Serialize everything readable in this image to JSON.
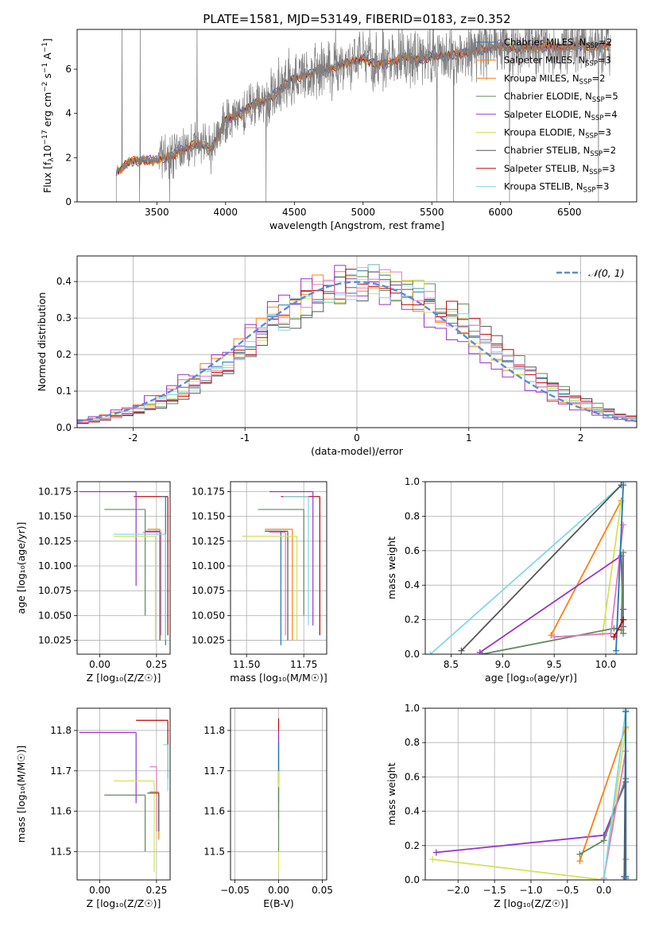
{
  "title": "PLATE=1581, MJD=53149, FIBERID=0183, z=0.352",
  "colors": {
    "Chabrier MILES": "#1f77b4",
    "Salpeter MILES": "#ff7f0e",
    "Kroupa MILES": "#ff7f0e",
    "Chabrier ELODIE": "#5f8a5f",
    "Salpeter ELODIE": "#9932cc",
    "Kroupa ELODIE": "#d4e157",
    "Chabrier STELIB": "#555555",
    "Salpeter STELIB": "#c00000",
    "Kroupa STELIB": "#80d8e0",
    "Pink": "#e377c2",
    "Data": "#808080",
    "Normal": "#5b8bd9"
  },
  "chart_data": [
    {
      "id": "spectrum",
      "type": "line",
      "xlabel": "wavelength [Angstrom, rest frame]",
      "ylabel_parts": [
        "Flux [f",
        "λ",
        "10",
        "−17",
        " erg cm",
        "−2",
        " s",
        "−1",
        " A",
        "−1",
        "]"
      ],
      "xlim": [
        2920,
        6990
      ],
      "ylim": [
        0,
        7.8
      ],
      "xticks": [
        3500,
        4000,
        4500,
        5000,
        5500,
        6000,
        6500
      ],
      "yticks": [
        0,
        2,
        4,
        6
      ],
      "continuum": [
        [
          3200,
          1.3
        ],
        [
          3300,
          1.8
        ],
        [
          3400,
          1.9
        ],
        [
          3500,
          1.85
        ],
        [
          3600,
          2.1
        ],
        [
          3700,
          2.4
        ],
        [
          3800,
          2.6
        ],
        [
          3900,
          2.4
        ],
        [
          4000,
          3.7
        ],
        [
          4100,
          4.0
        ],
        [
          4200,
          4.4
        ],
        [
          4300,
          4.6
        ],
        [
          4400,
          5.1
        ],
        [
          4500,
          5.6
        ],
        [
          4600,
          5.8
        ],
        [
          4700,
          6.0
        ],
        [
          4800,
          6.1
        ],
        [
          4900,
          6.3
        ],
        [
          5000,
          6.5
        ],
        [
          5100,
          6.2
        ],
        [
          5200,
          6.3
        ],
        [
          5300,
          6.6
        ],
        [
          5400,
          6.4
        ],
        [
          5500,
          6.6
        ],
        [
          5600,
          6.6
        ],
        [
          5700,
          6.7
        ],
        [
          5800,
          6.8
        ],
        [
          5900,
          6.9
        ],
        [
          6000,
          7.1
        ],
        [
          6100,
          6.9
        ],
        [
          6200,
          7.0
        ],
        [
          6300,
          7.0
        ],
        [
          6400,
          7.0
        ],
        [
          6500,
          7.0
        ],
        [
          6600,
          7.1
        ],
        [
          6700,
          7.0
        ],
        [
          6800,
          7.1
        ]
      ],
      "legend": [
        {
          "label": "Chabrier MILES, N",
          "sub": "SSP",
          "val": "=2",
          "color": "Chabrier MILES"
        },
        {
          "label": "Salpeter MILES, N",
          "sub": "SSP",
          "val": "=3",
          "color": "Salpeter MILES"
        },
        {
          "label": "Kroupa MILES, N",
          "sub": "SSP",
          "val": "=2",
          "color": "Kroupa MILES"
        },
        {
          "label": "Chabrier ELODIE, N",
          "sub": "SSP",
          "val": "=5",
          "color": "Chabrier ELODIE"
        },
        {
          "label": "Salpeter ELODIE, N",
          "sub": "SSP",
          "val": "=4",
          "color": "Salpeter ELODIE"
        },
        {
          "label": "Kroupa ELODIE, N",
          "sub": "SSP",
          "val": "=3",
          "color": "Kroupa ELODIE"
        },
        {
          "label": "Chabrier STELIB, N",
          "sub": "SSP",
          "val": "=2",
          "color": "Chabrier STELIB"
        },
        {
          "label": "Salpeter STELIB, N",
          "sub": "SSP",
          "val": "=3",
          "color": "Salpeter STELIB"
        },
        {
          "label": "Kroupa STELIB, N",
          "sub": "SSP",
          "val": "=3",
          "color": "Kroupa STELIB"
        }
      ]
    },
    {
      "id": "residuals",
      "type": "line",
      "xlabel": "(data-model)/error",
      "ylabel": "Normed distribution",
      "xlim": [
        -2.5,
        2.5
      ],
      "ylim": [
        0,
        0.47
      ],
      "xticks": [
        -2,
        -1,
        0,
        1,
        2
      ],
      "yticks": [
        0.0,
        0.1,
        0.2,
        0.3,
        0.4
      ],
      "legend": "𝒩(0, 1)",
      "bins": 50,
      "series": [
        {
          "color": "Chabrier MILES",
          "shift": 0.1
        },
        {
          "color": "Salpeter MILES",
          "shift": 0.0
        },
        {
          "color": "Chabrier ELODIE",
          "shift": 0.2
        },
        {
          "color": "Salpeter ELODIE",
          "shift": -0.05
        },
        {
          "color": "Kroupa ELODIE",
          "shift": 0.1
        },
        {
          "color": "Chabrier STELIB",
          "shift": 0.2
        },
        {
          "color": "Salpeter STELIB",
          "shift": 0.15
        },
        {
          "color": "Kroupa STELIB",
          "shift": 0.1
        },
        {
          "color": "Pink",
          "shift": 0.12
        }
      ]
    },
    {
      "id": "age-z",
      "type": "scatter",
      "xlabel": "Z [log₁₀(Z/Z☉)]",
      "ylabel": "age  [log₁₀(age/yr)]",
      "xlim": [
        -0.1,
        0.31
      ],
      "ylim": [
        10.011,
        10.185
      ],
      "xticks": [
        0.0,
        0.25
      ],
      "xticklabels": [
        "0.00",
        "0.25"
      ],
      "yticks": [
        10.025,
        10.05,
        10.075,
        10.1,
        10.125,
        10.15,
        10.175
      ],
      "yticklabels": [
        "10.025",
        "10.050",
        "10.075",
        "10.100",
        "10.125",
        "10.150",
        "10.175"
      ],
      "points": [
        {
          "x": 0.3,
          "y": 10.17,
          "xlo": 0.15,
          "ylo": 10.03,
          "color": "Salpeter STELIB"
        },
        {
          "x": 0.16,
          "y": 10.175,
          "xlo": -0.09,
          "ylo": 10.08,
          "color": "Salpeter ELODIE"
        },
        {
          "x": 0.29,
          "y": 10.17,
          "xlo": 0.27,
          "ylo": 10.02,
          "color": "Chabrier MILES"
        },
        {
          "x": 0.2,
          "y": 10.157,
          "xlo": 0.02,
          "ylo": 10.05,
          "color": "Chabrier ELODIE"
        },
        {
          "x": 0.265,
          "y": 10.137,
          "xlo": 0.21,
          "ylo": 10.025,
          "color": "Salpeter MILES"
        },
        {
          "x": 0.265,
          "y": 10.135,
          "xlo": 0.2,
          "ylo": 10.025,
          "color": "Chabrier STELIB"
        },
        {
          "x": 0.27,
          "y": 10.134,
          "xlo": 0.19,
          "ylo": 10.03,
          "color": "Pink"
        },
        {
          "x": 0.29,
          "y": 10.132,
          "xlo": 0.06,
          "ylo": 10.025,
          "color": "Kroupa STELIB"
        },
        {
          "x": 0.245,
          "y": 10.13,
          "xlo": 0.06,
          "ylo": 10.025,
          "color": "Kroupa ELODIE"
        }
      ]
    },
    {
      "id": "age-mass",
      "type": "scatter",
      "xlabel": "mass [log₁₀(M/M☉)]",
      "xlim": [
        11.43,
        11.85
      ],
      "ylim": [
        10.011,
        10.185
      ],
      "xticks": [
        11.5,
        11.75
      ],
      "xticklabels": [
        "11.50",
        "11.75"
      ],
      "yticks": [
        10.025,
        10.05,
        10.075,
        10.1,
        10.125,
        10.15,
        10.175
      ],
      "yticklabels": [
        "10.025",
        "10.050",
        "10.075",
        "10.100",
        "10.125",
        "10.150",
        "10.175"
      ],
      "points": [
        {
          "x": 11.82,
          "y": 10.17,
          "xlo": 11.65,
          "ylo": 10.03,
          "color": "Salpeter STELIB"
        },
        {
          "x": 11.79,
          "y": 10.175,
          "xlo": 11.6,
          "ylo": 10.04,
          "color": "Salpeter ELODIE"
        },
        {
          "x": 11.77,
          "y": 10.17,
          "xlo": 11.66,
          "ylo": 10.04,
          "color": "Kroupa STELIB"
        },
        {
          "x": 11.75,
          "y": 10.157,
          "xlo": 11.55,
          "ylo": 10.05,
          "color": "Chabrier ELODIE"
        },
        {
          "x": 11.7,
          "y": 10.137,
          "xlo": 11.58,
          "ylo": 10.025,
          "color": "Salpeter MILES"
        },
        {
          "x": 11.68,
          "y": 10.135,
          "xlo": 11.58,
          "ylo": 10.025,
          "color": "Chabrier STELIB"
        },
        {
          "x": 11.67,
          "y": 10.134,
          "xlo": 11.6,
          "ylo": 10.03,
          "color": "Pink"
        },
        {
          "x": 11.65,
          "y": 10.135,
          "xlo": 11.58,
          "ylo": 10.02,
          "color": "Chabrier MILES"
        },
        {
          "x": 11.72,
          "y": 10.13,
          "xlo": 11.48,
          "ylo": 10.025,
          "color": "Kroupa ELODIE"
        }
      ]
    },
    {
      "id": "weight-age",
      "type": "line",
      "xlabel": "age  [log₁₀(age/yr)]",
      "ylabel": "mass weight",
      "xlim": [
        8.25,
        10.3
      ],
      "ylim": [
        0,
        1.0
      ],
      "xticks": [
        8.5,
        9.0,
        9.5,
        10.0
      ],
      "xticklabels": [
        "8.5",
        "9.0",
        "9.5",
        "10.0"
      ],
      "yticks": [
        0.0,
        0.2,
        0.4,
        0.6,
        0.8,
        1.0
      ],
      "yticklabels": [
        "0.0",
        "0.2",
        "0.4",
        "0.6",
        "0.8",
        "1.0"
      ],
      "series": [
        {
          "color": "Kroupa STELIB",
          "x": [
            8.3,
            10.17
          ],
          "y": [
            0.0,
            0.99
          ]
        },
        {
          "color": "Chabrier STELIB",
          "x": [
            8.6,
            10.15
          ],
          "y": [
            0.02,
            0.98
          ]
        },
        {
          "color": "Salpeter MILES",
          "x": [
            9.47,
            10.15
          ],
          "y": [
            0.11,
            0.89
          ]
        },
        {
          "color": "Kroupa ELODIE",
          "x": [
            9.97,
            10.15
          ],
          "y": [
            0.12,
            0.88
          ]
        },
        {
          "color": "Salpeter ELODIE",
          "x": [
            8.78,
            10.15,
            10.17,
            10.17
          ],
          "y": [
            0.01,
            0.57,
            0.16,
            0.26
          ]
        },
        {
          "color": "Chabrier ELODIE",
          "x": [
            8.8,
            10.08,
            10.15,
            10.17,
            10.17
          ],
          "y": [
            0.0,
            0.15,
            0.14,
            0.59,
            0.12
          ]
        },
        {
          "color": "Pink",
          "x": [
            9.5,
            10.05,
            10.17
          ],
          "y": [
            0.1,
            0.12,
            0.75
          ]
        },
        {
          "color": "Chabrier MILES",
          "x": [
            10.1,
            10.17
          ],
          "y": [
            0.02,
            0.98
          ]
        },
        {
          "color": "Salpeter STELIB",
          "x": [
            10.08,
            10.17
          ],
          "y": [
            0.1,
            0.2
          ]
        }
      ]
    },
    {
      "id": "mass-z",
      "type": "scatter",
      "xlabel": "Z [log₁₀(Z/Z☉)]",
      "ylabel": "mass [log₁₀(M/M☉)]",
      "xlim": [
        -0.1,
        0.31
      ],
      "ylim": [
        11.43,
        11.855
      ],
      "xticks": [
        0.0,
        0.25
      ],
      "xticklabels": [
        "0.00",
        "0.25"
      ],
      "yticks": [
        11.5,
        11.6,
        11.7,
        11.8
      ],
      "yticklabels": [
        "11.5",
        "11.6",
        "11.7",
        "11.8"
      ],
      "points": [
        {
          "x": 0.3,
          "y": 11.825,
          "xlo": 0.16,
          "ylo": 11.68,
          "color": "Salpeter STELIB"
        },
        {
          "x": 0.16,
          "y": 11.795,
          "xlo": -0.09,
          "ylo": 11.62,
          "color": "Salpeter ELODIE"
        },
        {
          "x": 0.3,
          "y": 11.765,
          "xlo": 0.28,
          "ylo": 11.65,
          "color": "Kroupa STELIB"
        },
        {
          "x": 0.25,
          "y": 11.71,
          "xlo": 0.22,
          "ylo": 11.55,
          "color": "Pink"
        },
        {
          "x": 0.24,
          "y": 11.675,
          "xlo": 0.06,
          "ylo": 11.45,
          "color": "Kroupa ELODIE"
        },
        {
          "x": 0.26,
          "y": 11.648,
          "xlo": 0.22,
          "ylo": 11.53,
          "color": "Salpeter MILES"
        },
        {
          "x": 0.26,
          "y": 11.645,
          "xlo": 0.21,
          "ylo": 11.55,
          "color": "Chabrier STELIB"
        },
        {
          "x": 0.2,
          "y": 11.64,
          "xlo": 0.02,
          "ylo": 11.5,
          "color": "Chabrier ELODIE"
        }
      ]
    },
    {
      "id": "mass-ebv",
      "type": "scatter",
      "xlabel": "E(B-V)",
      "xlim": [
        -0.055,
        0.055
      ],
      "ylim": [
        11.43,
        11.855
      ],
      "xticks": [
        -0.05,
        0.0,
        0.05
      ],
      "xticklabels": [
        "−0.05",
        "0.00",
        "0.05"
      ],
      "yticks": [
        11.5,
        11.6,
        11.7,
        11.8
      ],
      "yticklabels": [
        "11.5",
        "11.6",
        "11.7",
        "11.8"
      ],
      "points": [
        {
          "x": 0.0,
          "y": 11.83,
          "ylo": 11.67,
          "color": "Salpeter STELIB"
        },
        {
          "x": 0.0,
          "y": 11.8,
          "ylo": 11.62,
          "color": "Salpeter ELODIE"
        },
        {
          "x": 0.0,
          "y": 11.77,
          "ylo": 11.58,
          "color": "Chabrier MILES"
        },
        {
          "x": 0.0,
          "y": 11.7,
          "ylo": 11.45,
          "color": "Kroupa ELODIE"
        },
        {
          "x": 0.0,
          "y": 11.66,
          "ylo": 11.5,
          "color": "Chabrier ELODIE"
        }
      ]
    },
    {
      "id": "weight-z",
      "type": "line",
      "xlabel": "Z [log₁₀(Z/Z☉)]",
      "ylabel": "mass weight",
      "xlim": [
        -2.45,
        0.45
      ],
      "ylim": [
        0,
        1.0
      ],
      "xticks": [
        -2.0,
        -1.5,
        -1.0,
        -0.5,
        0.0
      ],
      "xticklabels": [
        "−2.0",
        "−1.5",
        "−1.0",
        "−0.5",
        "0.0"
      ],
      "yticks": [
        0.0,
        0.2,
        0.4,
        0.6,
        0.8,
        1.0
      ],
      "yticklabels": [
        "0.0",
        "0.2",
        "0.4",
        "0.6",
        "0.8",
        "1.0"
      ],
      "series": [
        {
          "color": "Kroupa ELODIE",
          "x": [
            -2.35,
            0.0,
            0.3
          ],
          "y": [
            0.12,
            0.0,
            0.88
          ]
        },
        {
          "color": "Salpeter ELODIE",
          "x": [
            -2.3,
            0.0,
            0.3,
            0.3
          ],
          "y": [
            0.16,
            0.26,
            0.57,
            0.01
          ]
        },
        {
          "color": "Salpeter MILES",
          "x": [
            -0.33,
            0.3
          ],
          "y": [
            0.11,
            0.89
          ]
        },
        {
          "color": "Chabrier ELODIE",
          "x": [
            -0.33,
            0.0,
            0.3,
            0.3
          ],
          "y": [
            0.15,
            0.23,
            0.59,
            0.0
          ]
        },
        {
          "color": "Pink",
          "x": [
            0.0,
            0.3,
            0.3
          ],
          "y": [
            0.01,
            0.75,
            0.12
          ]
        },
        {
          "color": "Kroupa STELIB",
          "x": [
            0.0,
            0.3,
            0.3
          ],
          "y": [
            0.0,
            0.99,
            0.0
          ]
        },
        {
          "color": "Chabrier STELIB",
          "x": [
            0.28,
            0.3
          ],
          "y": [
            0.02,
            0.98
          ]
        },
        {
          "color": "Chabrier MILES",
          "x": [
            0.3,
            0.3
          ],
          "y": [
            0.02,
            0.98
          ]
        }
      ]
    }
  ]
}
